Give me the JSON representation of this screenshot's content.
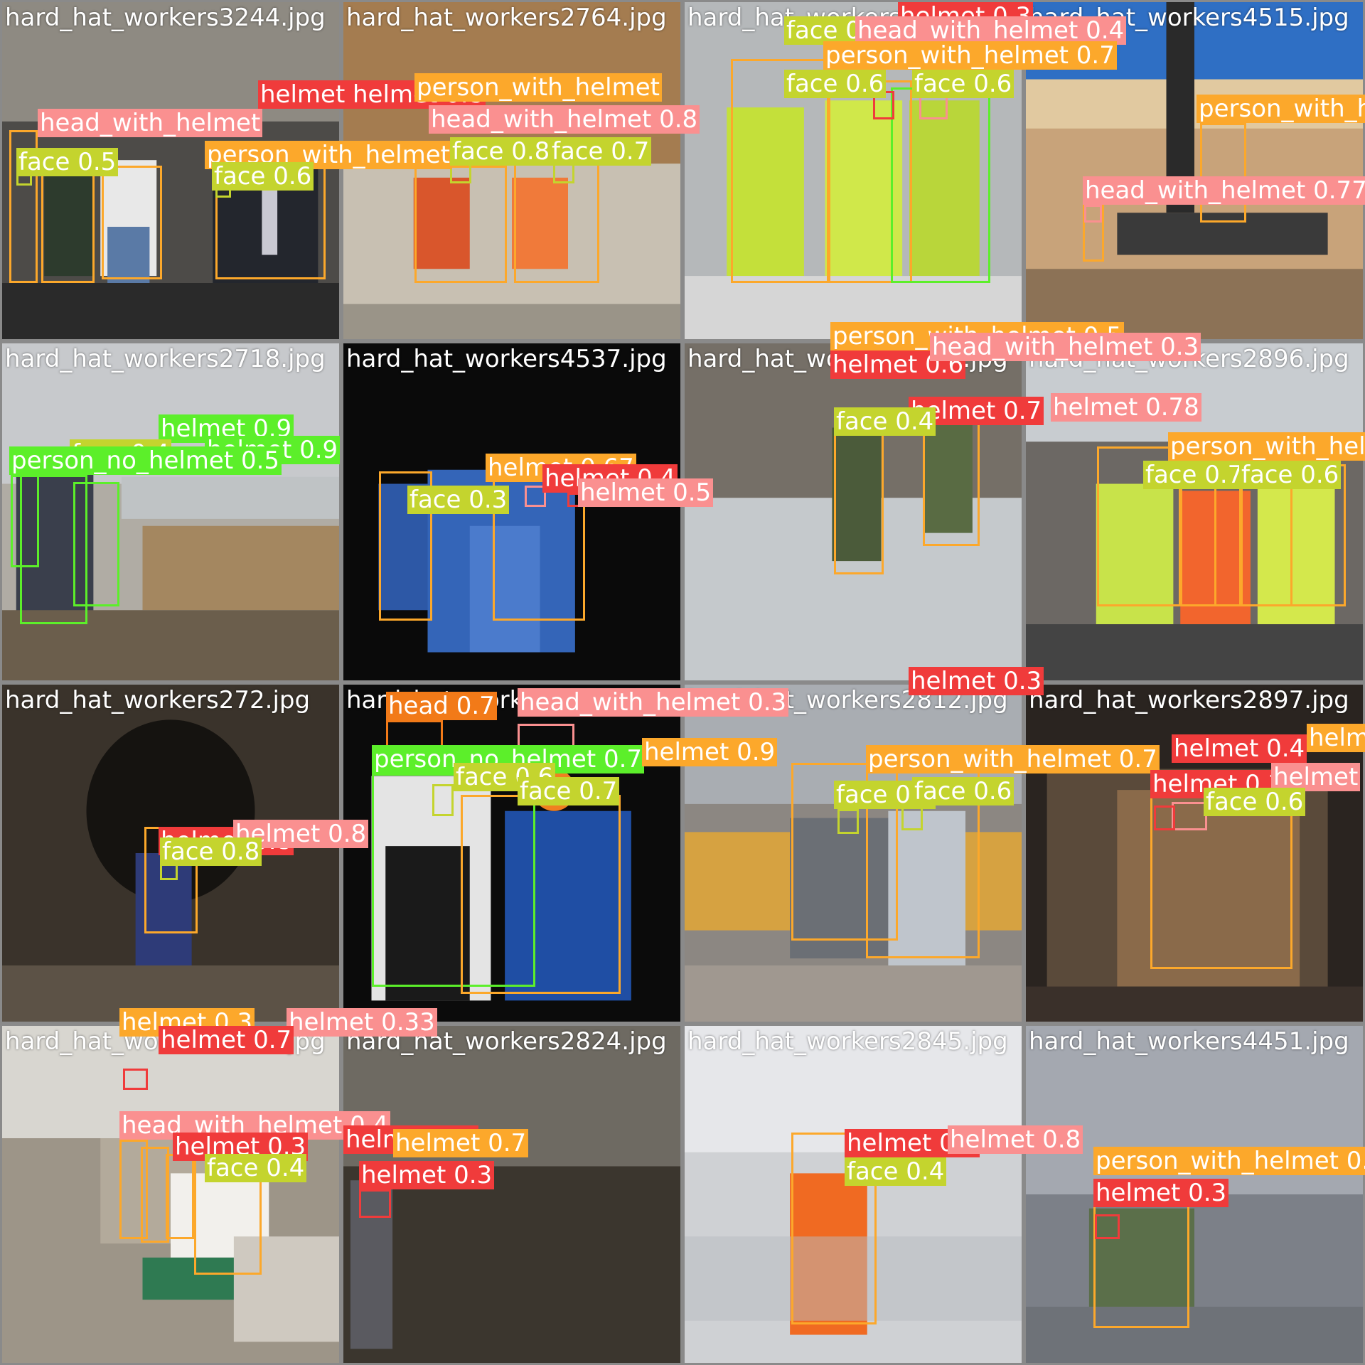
{
  "colors": {
    "helmet": "#f03b3b",
    "head_with_helmet": "#fa9090",
    "person_with_helmet": "#fca82b",
    "face": "#c4d42e",
    "person_no_helmet": "#5cef2a",
    "head": "#f27a18"
  },
  "tiles": [
    {
      "filename": "hard_hat_workers3244.jpg",
      "labels": [
        "helmet 0.8",
        "person_with_helmet",
        "head_with_helmet",
        "face 0.5",
        "face 0.6"
      ]
    },
    {
      "filename": "hard_hat_workers2764.jpg",
      "labels": [
        "helmet 0.8",
        "head_with_helmet 0.8",
        "face 0.8",
        "face 0.7",
        "person_with_helmet"
      ]
    },
    {
      "filename": "hard_hat_workers4515.jpg",
      "labels": [
        "face 0.4",
        "face 0.6",
        "face 0.6",
        "helmet 0.3",
        "head_with_helmet 0.4",
        "person_with_helmet 0.7"
      ]
    },
    {
      "filename": "hard_hat_workers4515.jpg",
      "labels": [
        "person_with_h",
        "head_with_helmet 0.77"
      ]
    },
    {
      "filename": "hard_hat_workers2718.jpg",
      "labels": [
        "helmet 0.9",
        "helmet 0.9",
        "face 0.4",
        "person_no_helmet 0.5"
      ]
    },
    {
      "filename": "hard_hat_workers4537.jpg",
      "labels": [
        "helmet 0.67",
        "face 0.3",
        "helmet 0.4",
        "helmet 0.5"
      ]
    },
    {
      "filename": "hard_hat_workers2896.jpg",
      "labels": [
        "person_with_helmet 0.5",
        "helmet 0.6",
        "head_with_helmet 0.3",
        "helmet 0.7",
        "face 0.4",
        "helmet 0.78"
      ]
    },
    {
      "filename": "hard_hat_workers2896.jpg",
      "labels": [
        "person_with_hel",
        "face 0.7",
        "face 0.6"
      ]
    },
    {
      "filename": "hard_hat_workers272.jpg",
      "labels": [
        "helmet 0.8",
        "helmet 0.8",
        "face 0.8"
      ]
    },
    {
      "filename": "hard_hat_workers2811.jpg",
      "labels": [
        "head 0.7",
        "head_with_helmet 0.3",
        "person_no_helmet 0.7",
        "face 0.6",
        "face 0.7",
        "helmet 0.9"
      ]
    },
    {
      "filename": "hard_hat_workers2812.jpg",
      "labels": [
        "helmet 0.3",
        "person_with_helmet 0.7",
        "face 0.6",
        "face 0.6"
      ]
    },
    {
      "filename": "hard_hat_workers2897.jpg",
      "labels": [
        "helmet 0.4",
        "helmet 0.3",
        "helmet",
        "helm",
        "face 0.6"
      ]
    },
    {
      "filename": "hard_hat_workers2824.jpg",
      "labels": [
        "helmet 0.3",
        "helmet 0.33",
        "head_with_helmet 0.4",
        "helmet 0.3",
        "face 0.4",
        "helmet 0.7"
      ]
    },
    {
      "filename": "hard_hat_workers2824.jpg",
      "labels": [
        "helmet 0.3",
        "helmet 0.5",
        "helmet 0.7"
      ]
    },
    {
      "filename": "hard_hat_workers2845.jpg",
      "labels": [
        "helmet 0.7",
        "helmet 0.8",
        "face 0.4"
      ]
    },
    {
      "filename": "hard_hat_workers4451.jpg",
      "labels": [
        "person_with_helmet 0.",
        "helmet 0.3"
      ]
    }
  ]
}
